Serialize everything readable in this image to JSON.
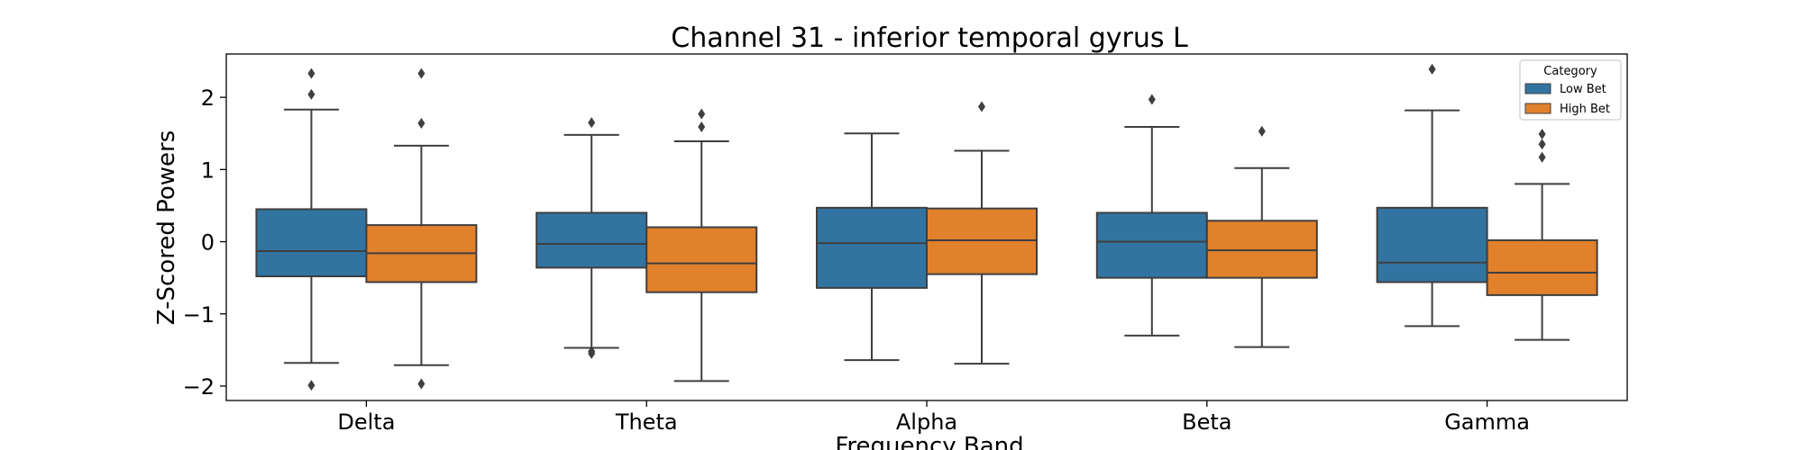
{
  "chart_data": {
    "type": "box",
    "title": "Channel 31 - inferior temporal gyrus L",
    "xlabel": "Frequency Band",
    "ylabel": "Z-Scored Powers",
    "categories": [
      "Delta",
      "Theta",
      "Alpha",
      "Beta",
      "Gamma"
    ],
    "ylim": [
      -2.2,
      2.6
    ],
    "yticks": [
      -2,
      -1,
      0,
      1,
      2
    ],
    "ytick_labels": [
      "−2",
      "−1",
      "0",
      "1",
      "2"
    ],
    "legend": {
      "title": "Category",
      "position": "top-right"
    },
    "series": [
      {
        "name": "Low Bet",
        "color": "#3274a1",
        "boxes": [
          {
            "whisker_low": -1.68,
            "q1": -0.48,
            "median": -0.13,
            "q3": 0.45,
            "whisker_high": 1.83,
            "outliers": [
              -1.99,
              2.04,
              2.33
            ]
          },
          {
            "whisker_low": -1.47,
            "q1": -0.36,
            "median": -0.03,
            "q3": 0.4,
            "whisker_high": 1.48,
            "outliers": [
              -1.55,
              -1.52,
              1.65
            ]
          },
          {
            "whisker_low": -1.64,
            "q1": -0.64,
            "median": -0.02,
            "q3": 0.47,
            "whisker_high": 1.5,
            "outliers": []
          },
          {
            "whisker_low": -1.3,
            "q1": -0.5,
            "median": 0.0,
            "q3": 0.4,
            "whisker_high": 1.59,
            "outliers": [
              1.97
            ]
          },
          {
            "whisker_low": -1.17,
            "q1": -0.56,
            "median": -0.29,
            "q3": 0.47,
            "whisker_high": 1.82,
            "outliers": [
              2.39
            ]
          }
        ]
      },
      {
        "name": "High Bet",
        "color": "#e1812c",
        "boxes": [
          {
            "whisker_low": -1.71,
            "q1": -0.56,
            "median": -0.16,
            "q3": 0.23,
            "whisker_high": 1.33,
            "outliers": [
              -1.97,
              1.64,
              2.33
            ]
          },
          {
            "whisker_low": -1.93,
            "q1": -0.7,
            "median": -0.3,
            "q3": 0.2,
            "whisker_high": 1.39,
            "outliers": [
              1.59,
              1.77
            ]
          },
          {
            "whisker_low": -1.69,
            "q1": -0.45,
            "median": 0.02,
            "q3": 0.46,
            "whisker_high": 1.26,
            "outliers": [
              1.87
            ]
          },
          {
            "whisker_low": -1.46,
            "q1": -0.5,
            "median": -0.12,
            "q3": 0.29,
            "whisker_high": 1.02,
            "outliers": [
              1.53
            ]
          },
          {
            "whisker_low": -1.36,
            "q1": -0.74,
            "median": -0.43,
            "q3": 0.02,
            "whisker_high": 0.8,
            "outliers": [
              1.17,
              1.35,
              1.49
            ]
          }
        ]
      }
    ]
  }
}
